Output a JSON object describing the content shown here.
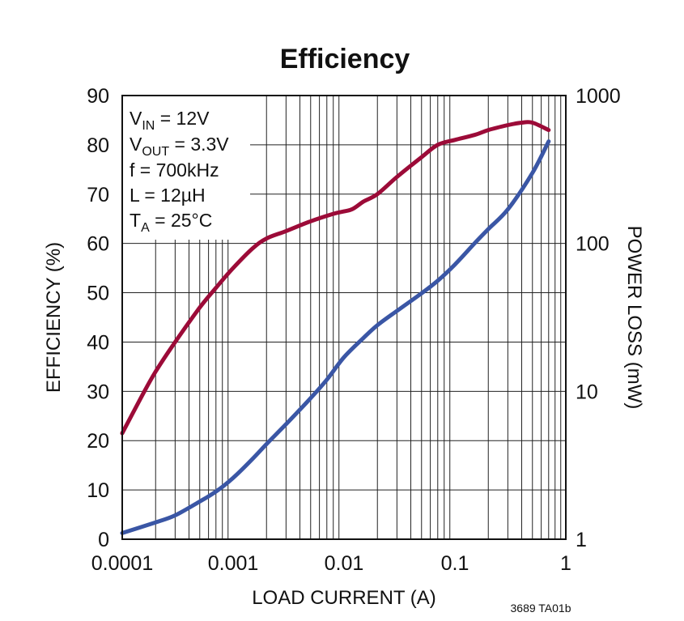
{
  "chart_data": {
    "type": "line",
    "title": "Efficiency",
    "xlabel": "LOAD CURRENT (A)",
    "ylabel": "EFFICIENCY (%)",
    "y2label": "POWER LOSS (mW)",
    "xscale": "log",
    "xlim": [
      0.0001,
      1
    ],
    "ylim": [
      0,
      90
    ],
    "y2scale": "log",
    "y2lim": [
      1,
      1000
    ],
    "grid": true,
    "xticks": [
      "0.0001",
      "0.001",
      "0.01",
      "0.1",
      "1"
    ],
    "yticks": [
      "0",
      "10",
      "20",
      "30",
      "40",
      "50",
      "60",
      "70",
      "80",
      "90"
    ],
    "y2ticks": [
      "1",
      "10",
      "100",
      "1000"
    ],
    "annotation": {
      "lines": [
        {
          "main": "V",
          "sub": "IN",
          "rest": " = 12V"
        },
        {
          "main": "V",
          "sub": "OUT",
          "rest": " = 3.3V"
        },
        {
          "main": "f = 700kHz",
          "sub": "",
          "rest": ""
        },
        {
          "main": "L = 12µH",
          "sub": "",
          "rest": ""
        },
        {
          "main": "T",
          "sub": "A",
          "rest": " = 25°C"
        }
      ]
    },
    "series": [
      {
        "axis": "left",
        "color": "#9c0b38",
        "x": [
          0.0001,
          0.00015,
          0.0002,
          0.0003,
          0.0005,
          0.0007,
          0.001,
          0.0015,
          0.002,
          0.003,
          0.005,
          0.008,
          0.01,
          0.012,
          0.015,
          0.02,
          0.03,
          0.05,
          0.07,
          0.1,
          0.15,
          0.2,
          0.3,
          0.4,
          0.5,
          0.7
        ],
        "values": [
          21.5,
          29,
          34,
          40,
          47,
          51,
          55,
          59,
          61,
          62.5,
          64.5,
          66,
          66.5,
          67,
          68.5,
          70,
          73.5,
          77.5,
          80,
          81,
          82,
          83,
          84,
          84.5,
          84.5,
          83
        ]
      },
      {
        "axis": "right",
        "color": "#3a56a5",
        "x": [
          0.0001,
          0.0002,
          0.0003,
          0.0005,
          0.0007,
          0.001,
          0.0015,
          0.002,
          0.003,
          0.005,
          0.007,
          0.01,
          0.015,
          0.02,
          0.03,
          0.05,
          0.07,
          0.1,
          0.15,
          0.2,
          0.3,
          0.5,
          0.7
        ],
        "values": [
          1.1,
          1.3,
          1.45,
          1.8,
          2.1,
          2.6,
          3.5,
          4.4,
          6,
          9,
          12,
          17,
          23,
          28,
          35,
          46,
          56,
          72,
          100,
          125,
          170,
          300,
          490
        ]
      }
    ]
  },
  "figure_ref": "3689 TA01b"
}
